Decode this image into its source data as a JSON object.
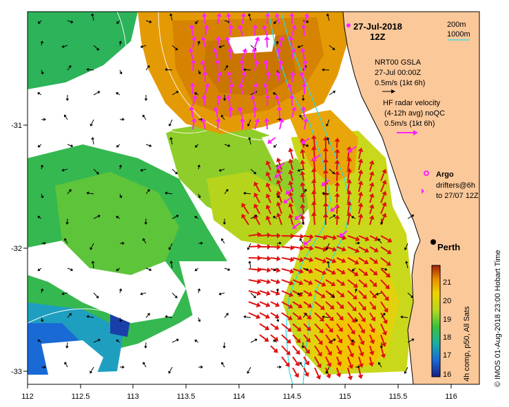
{
  "map": {
    "date_title": "27-Jul-2018",
    "time_title": "12Z",
    "depth_200": "200m",
    "depth_1000": "1000m",
    "gsla_line1": "NRT00 GSLA",
    "gsla_line2": "27-Jul 00:00Z",
    "gsla_line3": "0.5m/s (1kt 6h)",
    "radar_line1": "HF radar velocity",
    "radar_line2": "(4-12h avg) noQC",
    "radar_line3": "0.5m/s (1kt 6h)",
    "argo_label": "Argo",
    "drifters_line1": "drifters@6h",
    "drifters_line2": "to 27/07 12Z",
    "city_label": "Perth",
    "side_text": "© IMOS 01-Aug-2018 23:00 Hobart Time",
    "colorbar_title": "4h comp, p50, All Sats",
    "colorbar_ticks": [
      "16",
      "17",
      "18",
      "19",
      "20",
      "21"
    ],
    "x_ticks": [
      "112",
      "112.5",
      "113",
      "113.5",
      "114",
      "114.5",
      "115",
      "115.5",
      "116"
    ],
    "y_ticks": [
      "-31",
      "-32",
      "-33"
    ],
    "colors": {
      "land": "#fbc89a",
      "sst_warm": "#d98a00",
      "sst_mid": "#b7d21a",
      "sst_cool": "#28b45a",
      "radar_vector": "#e01010",
      "gsla_vector": "#000000",
      "drifter": "#ff22ff",
      "isobath": "#22ddee"
    }
  }
}
